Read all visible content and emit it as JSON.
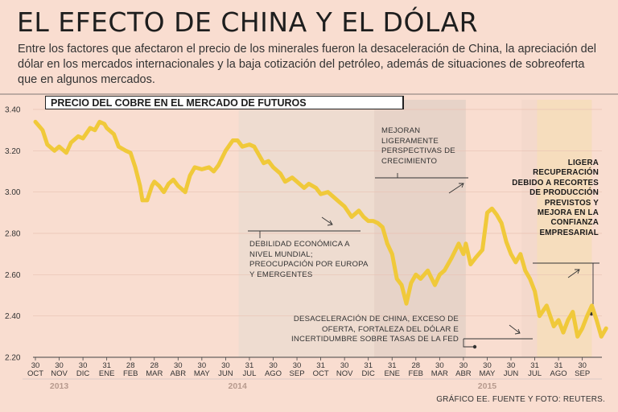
{
  "header": {
    "title": "EL EFECTO DE CHINA Y EL DÓLAR",
    "subtitle": "Entre los factores que afectaron el precio de los minerales fueron la desaceleración de China, la apreciación del dólar en los mercados internacionales y la baja cotización del petróleo, además de situaciones de sobreoferta que en algunos mercados."
  },
  "chart_data": {
    "type": "line",
    "title": "PRECIO DEL COBRE EN EL MERCADO DE FUTUROS",
    "ylim": [
      2.2,
      3.4
    ],
    "yticks": [
      "3.40",
      "3.20",
      "3.00",
      "2.80",
      "2.60",
      "2.40",
      "2.20"
    ],
    "xticks": [
      {
        "day": "30",
        "month": "OCT"
      },
      {
        "day": "30",
        "month": "NOV"
      },
      {
        "day": "30",
        "month": "DIC"
      },
      {
        "day": "31",
        "month": "ENE"
      },
      {
        "day": "28",
        "month": "FEB"
      },
      {
        "day": "28",
        "month": "MAR"
      },
      {
        "day": "30",
        "month": "ABR"
      },
      {
        "day": "30",
        "month": "MAY"
      },
      {
        "day": "30",
        "month": "JUN"
      },
      {
        "day": "31",
        "month": "JUL"
      },
      {
        "day": "30",
        "month": "AGO"
      },
      {
        "day": "30",
        "month": "SEP"
      },
      {
        "day": "31",
        "month": "OCT"
      },
      {
        "day": "30",
        "month": "NOV"
      },
      {
        "day": "31",
        "month": "DIC"
      },
      {
        "day": "31",
        "month": "ENE"
      },
      {
        "day": "28",
        "month": "FEB"
      },
      {
        "day": "30",
        "month": "MAR"
      },
      {
        "day": "30",
        "month": "ABR"
      },
      {
        "day": "30",
        "month": "MAY"
      },
      {
        "day": "30",
        "month": "JUN"
      },
      {
        "day": "31",
        "month": "JUL"
      },
      {
        "day": "31",
        "month": "AGO"
      },
      {
        "day": "30",
        "month": "SEP"
      }
    ],
    "years": [
      {
        "label": "2013",
        "from": 0,
        "to": 2
      },
      {
        "label": "2014",
        "from": 3,
        "to": 14
      },
      {
        "label": "2015",
        "from": 15,
        "to": 23
      }
    ],
    "series": [
      {
        "color": "#f0c93a",
        "x": [
          0,
          0.3,
          0.5,
          0.8,
          1.0,
          1.3,
          1.5,
          1.8,
          2.0,
          2.3,
          2.5,
          2.7,
          2.9,
          3.0,
          3.3,
          3.5,
          3.8,
          4.0,
          4.2,
          4.4,
          4.5,
          4.7,
          4.9,
          5.0,
          5.2,
          5.4,
          5.6,
          5.8,
          6.0,
          6.3,
          6.5,
          6.7,
          7.0,
          7.3,
          7.5,
          7.7,
          8.0,
          8.3,
          8.5,
          8.7,
          9.0,
          9.2,
          9.4,
          9.6,
          9.8,
          10.0,
          10.3,
          10.5,
          10.8,
          11.0,
          11.3,
          11.5,
          11.8,
          12.0,
          12.3,
          12.5,
          12.8,
          13.0,
          13.3,
          13.6,
          13.8,
          14.0,
          14.2,
          14.4,
          14.6,
          14.8,
          15.0,
          15.2,
          15.4,
          15.6,
          15.8,
          16.0,
          16.2,
          16.5,
          16.8,
          17.0,
          17.2,
          17.5,
          17.8,
          18.0,
          18.1,
          18.3,
          18.5,
          18.8,
          19.0,
          19.2,
          19.4,
          19.6,
          19.8,
          20.0,
          20.2,
          20.4,
          20.6,
          20.8,
          21.0,
          21.2,
          21.5,
          21.8,
          22.0,
          22.2,
          22.4,
          22.6,
          22.8,
          23.0,
          23.2,
          23.4,
          23.6,
          23.8,
          24.0
        ],
        "values": [
          3.34,
          3.3,
          3.23,
          3.2,
          3.22,
          3.19,
          3.24,
          3.27,
          3.26,
          3.31,
          3.3,
          3.34,
          3.33,
          3.31,
          3.28,
          3.22,
          3.2,
          3.19,
          3.12,
          3.03,
          2.96,
          2.96,
          3.03,
          3.05,
          3.03,
          3.0,
          3.04,
          3.06,
          3.03,
          3.0,
          3.08,
          3.12,
          3.11,
          3.12,
          3.1,
          3.13,
          3.2,
          3.25,
          3.25,
          3.22,
          3.23,
          3.22,
          3.18,
          3.14,
          3.15,
          3.12,
          3.09,
          3.05,
          3.07,
          3.05,
          3.02,
          3.04,
          3.02,
          2.99,
          3.0,
          2.98,
          2.95,
          2.93,
          2.88,
          2.91,
          2.88,
          2.86,
          2.86,
          2.85,
          2.83,
          2.75,
          2.7,
          2.58,
          2.55,
          2.46,
          2.56,
          2.6,
          2.58,
          2.62,
          2.55,
          2.6,
          2.62,
          2.68,
          2.75,
          2.7,
          2.75,
          2.65,
          2.68,
          2.72,
          2.9,
          2.92,
          2.89,
          2.85,
          2.76,
          2.7,
          2.66,
          2.7,
          2.62,
          2.58,
          2.52,
          2.4,
          2.45,
          2.35,
          2.38,
          2.32,
          2.38,
          2.42,
          2.3,
          2.34,
          2.4,
          2.45,
          2.38,
          2.3,
          2.34
        ]
      }
    ],
    "shaded_regions": [
      {
        "from": 8.55,
        "to": 14.25,
        "color": "#eedcd0"
      },
      {
        "from": 14.25,
        "to": 18.1,
        "color": "#e7d3c8"
      },
      {
        "from": 20.45,
        "to": 21.1,
        "color": "#f4d9cc"
      },
      {
        "from": 21.1,
        "to": 23.4,
        "color": "#f6ddbd"
      }
    ]
  },
  "annotations": {
    "debilidad": "DEBILIDAD ECONÓMICA A NIVEL MUNDIAL; PREOCUPACIÓN POR EUROPA Y EMERGENTES",
    "mejoran": "MEJORAN LIGERAMENTE PERSPECTIVAS DE CRECIMIENTO",
    "desaceleracion": "DESACELERACIÓN DE CHINA, EXCESO DE OFERTA, FORTALEZA DEL DÓLAR E INCERTIDUMBRE SOBRE TASAS DE LA FED",
    "ligera": "LIGERA RECUPERACIÓN DEBIDO A RECORTES DE PRODUCCIÓN PREVISTOS Y MEJORA EN LA CONFIANZA EMPRESARIAL"
  },
  "footer": {
    "source": "GRÁFICO EE. FUENTE Y FOTO: REUTERS."
  }
}
